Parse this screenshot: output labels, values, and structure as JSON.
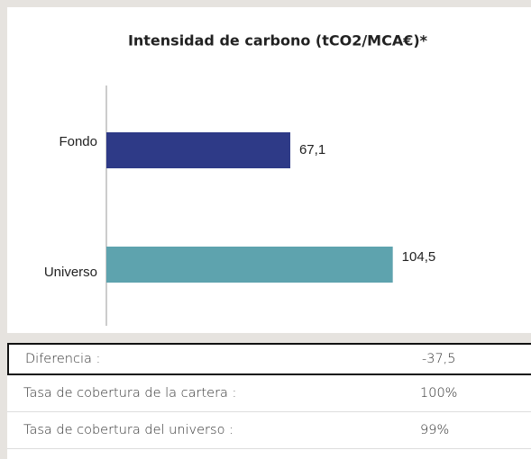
{
  "chart_data": {
    "type": "bar",
    "orientation": "horizontal",
    "title": "Intensidad de carbono (tCO2/MCA€)*",
    "categories": [
      "Fondo",
      "Universo"
    ],
    "series": [
      {
        "colors": [
          "#2e3a87",
          "#5ea3ae"
        ],
        "values": [
          67.1,
          104.5
        ],
        "value_labels": [
          "67,1",
          "104,5"
        ]
      }
    ],
    "xlim": [
      0,
      150
    ]
  },
  "table": {
    "rows": [
      [
        "Diferencia :",
        "-37,5"
      ],
      [
        "Tasa de cobertura de la cartera :",
        "100%"
      ],
      [
        "Tasa de cobertura del universo :",
        "99%"
      ]
    ]
  }
}
